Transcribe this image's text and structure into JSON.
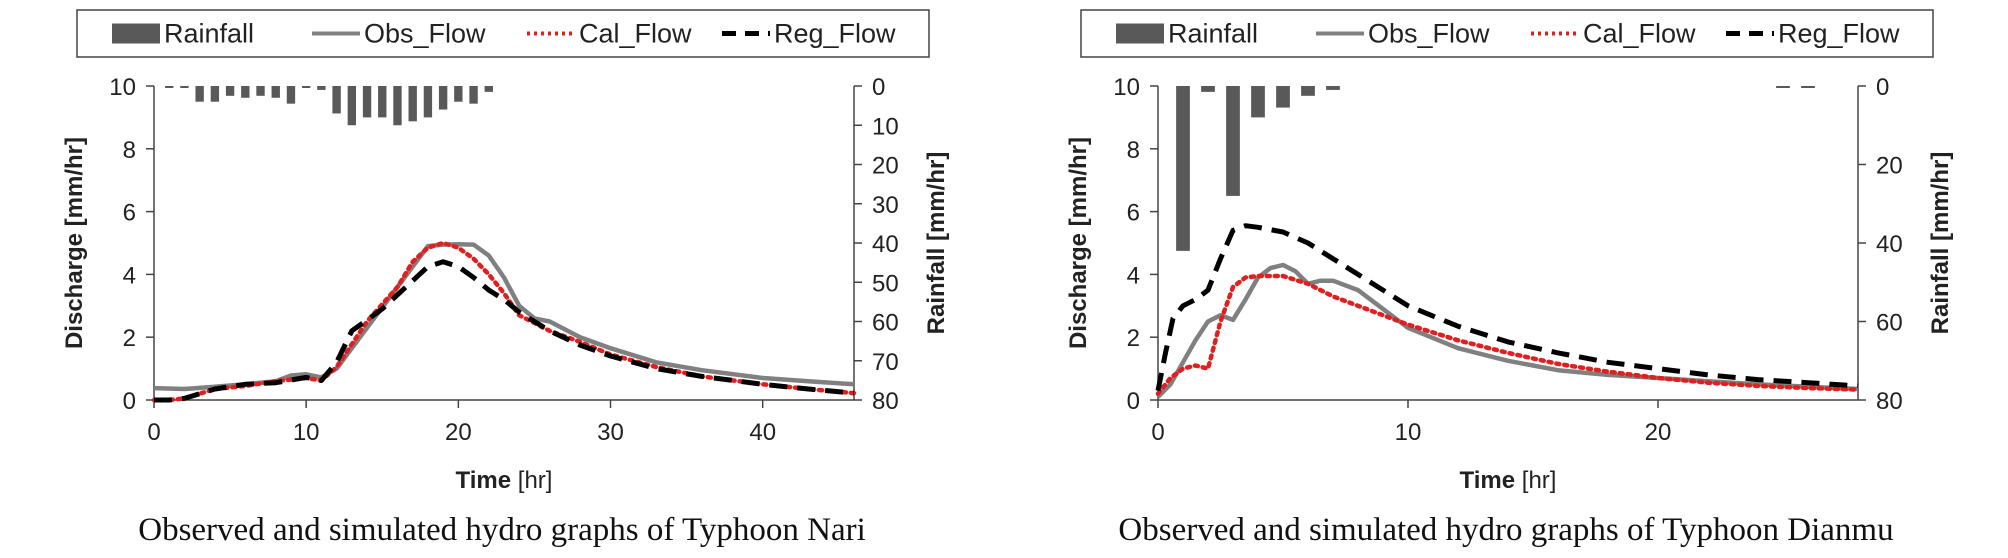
{
  "chart_data": [
    {
      "type": "line",
      "caption": "Observed and simulated hydro graphs of Typhoon Nari",
      "xlabel_bold": "Time",
      "xlabel_unit": "[hr]",
      "ylabel": "Discharge [mm/hr]",
      "y2label": "Rainfall [mm/hr]",
      "xlim": [
        0,
        46
      ],
      "ylim": [
        0,
        10
      ],
      "y2lim": [
        0,
        80
      ],
      "y2_inverted": true,
      "xticks": [
        0,
        10,
        20,
        30,
        40
      ],
      "yticks": [
        0,
        2,
        4,
        6,
        8,
        10
      ],
      "y2ticks": [
        0,
        10,
        20,
        30,
        40,
        50,
        60,
        70,
        80
      ],
      "legend": [
        "Rainfall",
        "Obs_Flow",
        "Cal_Flow",
        "Reg_Flow"
      ],
      "legend_position": "top",
      "rainfall": {
        "x": [
          1,
          2,
          3,
          4,
          5,
          6,
          7,
          8,
          9,
          10,
          11,
          12,
          13,
          14,
          15,
          16,
          17,
          18,
          19,
          20,
          21,
          22
        ],
        "values": [
          0.5,
          0.5,
          4,
          4,
          2.5,
          3,
          2.5,
          3,
          4.5,
          0.5,
          1,
          7,
          10,
          8,
          8,
          10,
          9,
          8,
          6,
          4,
          4.5,
          1.5
        ]
      },
      "series": [
        {
          "name": "Obs_Flow",
          "color": "#808080",
          "style": "solid",
          "x": [
            0,
            2,
            4,
            6,
            8,
            9,
            10,
            11,
            12,
            14,
            16,
            18,
            19,
            20,
            21,
            22,
            23,
            24,
            25,
            26,
            28,
            30,
            33,
            36,
            40,
            43,
            46
          ],
          "y": [
            0.38,
            0.35,
            0.42,
            0.5,
            0.6,
            0.78,
            0.82,
            0.72,
            1.0,
            2.3,
            3.6,
            4.9,
            4.95,
            4.96,
            4.95,
            4.6,
            3.9,
            3.0,
            2.6,
            2.5,
            2.0,
            1.65,
            1.2,
            0.95,
            0.7,
            0.6,
            0.5
          ]
        },
        {
          "name": "Cal_Flow",
          "color": "#e02020",
          "style": "dotted",
          "x": [
            0,
            1,
            2,
            3,
            4,
            6,
            8,
            10,
            11,
            12,
            14,
            16,
            17,
            18,
            19,
            20,
            21,
            22,
            23,
            24,
            26,
            28,
            30,
            33,
            36,
            40,
            43,
            46
          ],
          "y": [
            0,
            0,
            0.05,
            0.2,
            0.35,
            0.45,
            0.6,
            0.7,
            0.62,
            1.05,
            2.5,
            3.6,
            4.4,
            4.85,
            5.0,
            4.85,
            4.5,
            4.0,
            3.4,
            2.7,
            2.2,
            1.85,
            1.45,
            1.05,
            0.75,
            0.5,
            0.35,
            0.22
          ]
        },
        {
          "name": "Reg_Flow",
          "color": "#000000",
          "style": "dashed",
          "x": [
            0,
            1,
            2,
            3,
            4,
            6,
            8,
            10,
            11,
            12,
            13,
            15,
            17,
            18,
            19,
            20,
            21,
            22,
            23,
            24,
            26,
            28,
            30,
            33,
            36,
            40,
            43,
            46
          ],
          "y": [
            0,
            0,
            0.05,
            0.2,
            0.35,
            0.5,
            0.55,
            0.72,
            0.62,
            1.2,
            2.2,
            2.9,
            3.8,
            4.25,
            4.4,
            4.25,
            3.9,
            3.5,
            3.2,
            2.8,
            2.2,
            1.75,
            1.4,
            1.0,
            0.75,
            0.5,
            0.35,
            0.22
          ]
        }
      ]
    },
    {
      "type": "line",
      "caption": "Observed and simulated hydro graphs of Typhoon Dianmu",
      "xlabel_bold": "Time",
      "xlabel_unit": "[hr]",
      "ylabel": "Discharge [mm/hr]",
      "y2label": "Rainfall [mm/hr]",
      "xlim": [
        0,
        28
      ],
      "ylim": [
        0,
        10
      ],
      "y2lim": [
        0,
        80
      ],
      "y2_inverted": true,
      "xticks": [
        0,
        10,
        20
      ],
      "yticks": [
        0,
        2,
        4,
        6,
        8,
        10
      ],
      "y2ticks": [
        0,
        20,
        40,
        60,
        80
      ],
      "legend": [
        "Rainfall",
        "Obs_Flow",
        "Cal_Flow",
        "Reg_Flow"
      ],
      "legend_position": "top",
      "rainfall": {
        "x": [
          1,
          2,
          3,
          4,
          5,
          6,
          7,
          25,
          26
        ],
        "values": [
          42,
          1.5,
          28,
          8,
          5.5,
          2.5,
          1,
          0.3,
          0.3
        ]
      },
      "series": [
        {
          "name": "Obs_Flow",
          "color": "#808080",
          "style": "solid",
          "x": [
            0,
            0.5,
            1,
            1.5,
            2,
            2.5,
            3,
            3.5,
            4,
            4.5,
            5,
            5.5,
            6,
            6.5,
            7,
            8,
            10,
            12,
            14,
            16,
            18,
            20,
            22,
            24,
            26,
            28
          ],
          "y": [
            0.1,
            0.5,
            1.2,
            1.9,
            2.5,
            2.7,
            2.55,
            3.2,
            3.9,
            4.2,
            4.3,
            4.1,
            3.7,
            3.8,
            3.8,
            3.5,
            2.3,
            1.65,
            1.25,
            0.95,
            0.8,
            0.7,
            0.6,
            0.5,
            0.42,
            0.35
          ]
        },
        {
          "name": "Cal_Flow",
          "color": "#e02020",
          "style": "dotted",
          "x": [
            0,
            0.5,
            1,
            1.5,
            2,
            2.5,
            3,
            3.5,
            4,
            5,
            6,
            7,
            8,
            10,
            12,
            14,
            16,
            18,
            20,
            22,
            24,
            26,
            28
          ],
          "y": [
            0.2,
            0.7,
            1.0,
            1.1,
            1.0,
            2.5,
            3.6,
            3.9,
            3.95,
            3.95,
            3.7,
            3.3,
            3.0,
            2.4,
            1.9,
            1.5,
            1.15,
            0.9,
            0.7,
            0.55,
            0.45,
            0.38,
            0.33
          ]
        },
        {
          "name": "Reg_Flow",
          "color": "#000000",
          "style": "dashed",
          "x": [
            0,
            0.3,
            0.6,
            1,
            1.5,
            2,
            2.5,
            3,
            3.5,
            4,
            5,
            6,
            7,
            8,
            10,
            12,
            14,
            16,
            18,
            20,
            22,
            24,
            26,
            28
          ],
          "y": [
            0.3,
            1.5,
            2.6,
            3.0,
            3.2,
            3.5,
            4.5,
            5.4,
            5.55,
            5.5,
            5.35,
            5.0,
            4.5,
            4.0,
            3.0,
            2.35,
            1.85,
            1.5,
            1.2,
            1.0,
            0.8,
            0.65,
            0.55,
            0.45
          ]
        }
      ]
    }
  ]
}
